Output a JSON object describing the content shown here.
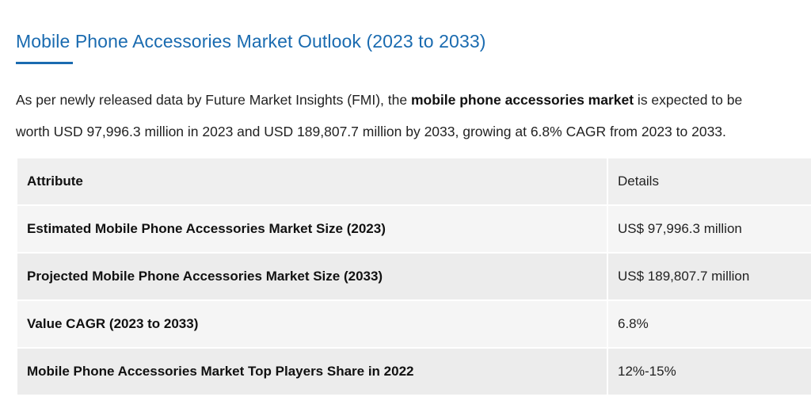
{
  "heading": "Mobile Phone Accessories Market Outlook (2023 to 2033)",
  "intro": {
    "line1_before": "As per newly released data by Future Market Insights (FMI), the ",
    "line1_bold": "mobile phone accessories market",
    "line1_after": " is expected to be",
    "line2": "worth USD 97,996.3 million in 2023 and USD 189,807.7 million by 2033, growing at 6.8% CAGR from 2023 to 2033."
  },
  "table": {
    "headers": {
      "attribute": "Attribute",
      "details": "Details"
    },
    "rows": [
      {
        "attribute": "Estimated Mobile Phone Accessories Market Size (2023)",
        "details": "US$ 97,996.3 million"
      },
      {
        "attribute": "Projected Mobile Phone Accessories Market Size (2033)",
        "details": "US$ 189,807.7 million"
      },
      {
        "attribute": "Value CAGR (2023 to 2033)",
        "details": "6.8%"
      },
      {
        "attribute": "Mobile Phone Accessories Market Top Players Share in 2022",
        "details": "12%-15%"
      }
    ]
  },
  "colors": {
    "heading": "#1a6bb0",
    "table_header_bg": "#efefef",
    "table_row_alt_bg": "#f5f5f5"
  }
}
